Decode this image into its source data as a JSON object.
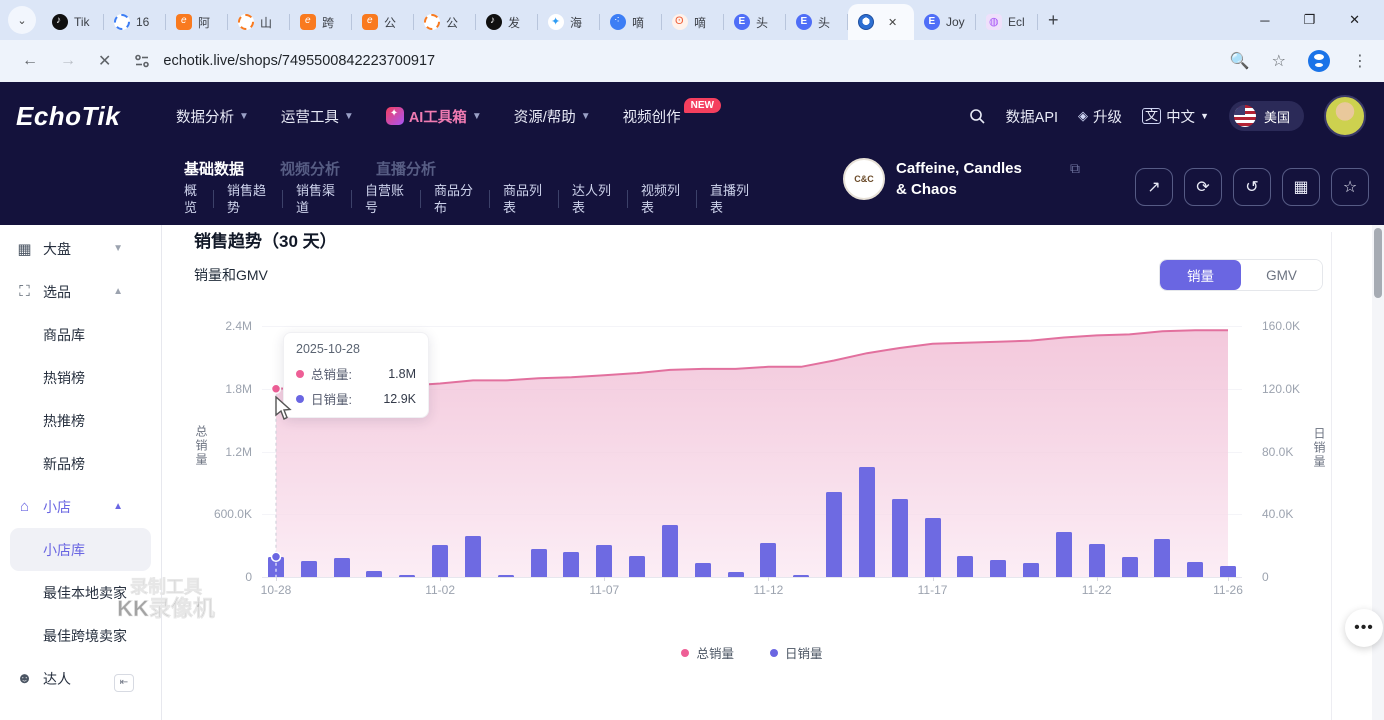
{
  "colors": {
    "navy": "#14123c",
    "purple": "#6a66e2",
    "pink_line": "#e2709e",
    "pink_dot": "#ee5f96",
    "bar": "#6e6ae2"
  },
  "browser": {
    "url": "echotik.live/shops/7495500842223700917",
    "tabs": [
      {
        "label": "Tik"
      },
      {
        "label": "16"
      },
      {
        "label": "阿"
      },
      {
        "label": "山"
      },
      {
        "label": "跨"
      },
      {
        "label": "公"
      },
      {
        "label": "公"
      },
      {
        "label": "发"
      },
      {
        "label": "海"
      },
      {
        "label": "嘀"
      },
      {
        "label": "嘀"
      },
      {
        "label": "头"
      },
      {
        "label": "头"
      },
      {
        "label": ""
      },
      {
        "label": "Joy"
      },
      {
        "label": "Ecl"
      }
    ]
  },
  "header": {
    "logo": "EchoTik",
    "nav": [
      "数据分析",
      "运营工具",
      "AI工具箱",
      "资源/帮助",
      "视频创作"
    ],
    "new_badge": "NEW",
    "data_api": "数据API",
    "upgrade": "升级",
    "language": "中文",
    "region": "美国"
  },
  "subheader": {
    "tabs": [
      "基础数据",
      "视频分析",
      "直播分析"
    ],
    "menu": [
      "概览",
      "销售趋势",
      "销售渠道",
      "自营账号",
      "商品分布",
      "商品列表",
      "达人列表",
      "视频列表",
      "直播列表"
    ],
    "shop_name": "Caffeine, Candles & Chaos"
  },
  "sidebar": {
    "items": [
      {
        "label": "大盘"
      },
      {
        "label": "选品"
      },
      {
        "label": "商品库"
      },
      {
        "label": "热销榜"
      },
      {
        "label": "热推榜"
      },
      {
        "label": "新品榜"
      },
      {
        "label": "小店"
      },
      {
        "label": "小店库"
      },
      {
        "label": "最佳本地卖家"
      },
      {
        "label": "最佳跨境卖家"
      },
      {
        "label": "达人"
      }
    ]
  },
  "main": {
    "title": "销售趋势（30 天）",
    "subtitle": "销量和GMV",
    "toggle": {
      "sales": "销量",
      "gmv": "GMV"
    },
    "tooltip": {
      "date": "2025-10-28",
      "row1_label": "总销量:",
      "row1_value": "1.8M",
      "row2_label": "日销量:",
      "row2_value": "12.9K"
    },
    "legend": {
      "total": "总销量",
      "daily": "日销量"
    }
  },
  "watermark": {
    "line1": "录制工具",
    "line2": "KK录像机"
  },
  "chart_data": {
    "type": "line+bar",
    "title": "销量和GMV",
    "x": [
      "10-28",
      "10-29",
      "10-30",
      "10-31",
      "11-01",
      "11-02",
      "11-03",
      "11-04",
      "11-05",
      "11-06",
      "11-07",
      "11-08",
      "11-09",
      "11-10",
      "11-11",
      "11-12",
      "11-13",
      "11-14",
      "11-15",
      "11-16",
      "11-17",
      "11-18",
      "11-19",
      "11-20",
      "11-21",
      "11-22",
      "11-23",
      "11-24",
      "11-25",
      "11-26"
    ],
    "x_tick_indices": [
      0,
      5,
      10,
      15,
      20,
      25,
      29
    ],
    "series": [
      {
        "name": "总销量",
        "type": "area-line",
        "axis": "left",
        "unit": "M",
        "values": [
          1.8,
          1.81,
          1.82,
          1.83,
          1.83,
          1.85,
          1.88,
          1.88,
          1.9,
          1.91,
          1.93,
          1.95,
          1.98,
          1.99,
          1.99,
          2.01,
          2.01,
          2.07,
          2.14,
          2.19,
          2.23,
          2.24,
          2.25,
          2.26,
          2.29,
          2.31,
          2.32,
          2.35,
          2.36,
          2.36
        ]
      },
      {
        "name": "日销量",
        "type": "bar",
        "axis": "right",
        "unit": "K",
        "values": [
          12.9,
          10.2,
          12.1,
          4.0,
          1.3,
          20.4,
          26.2,
          1.5,
          18.0,
          16.1,
          20.4,
          13.4,
          33.1,
          8.7,
          3.4,
          21.9,
          0.6,
          54.3,
          69.9,
          50.0,
          37.6,
          13.4,
          10.6,
          8.7,
          28.5,
          20.8,
          12.5,
          24.4,
          9.7,
          6.8
        ]
      }
    ],
    "left_axis": {
      "label": "总销量",
      "max": 2.4,
      "ticks": [
        "2.4M",
        "1.8M",
        "1.2M",
        "600.0K",
        "0"
      ]
    },
    "right_axis": {
      "label": "日销量",
      "max": 160,
      "ticks": [
        "160.0K",
        "120.0K",
        "80.0K",
        "40.0K",
        "0"
      ]
    },
    "highlight_index": 0,
    "legend_position": "bottom",
    "grid": true
  }
}
